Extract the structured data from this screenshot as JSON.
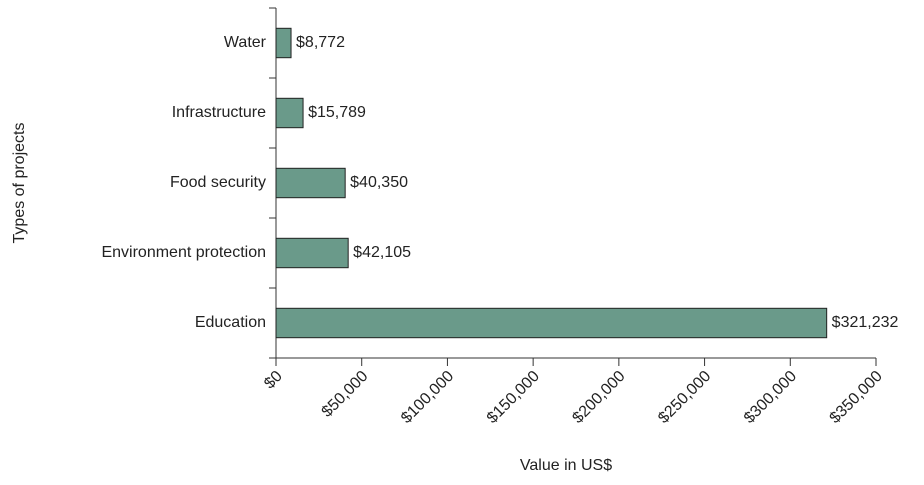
{
  "chart_data": {
    "type": "bar",
    "orientation": "horizontal",
    "categories": [
      "Water",
      "Infrastructure",
      "Food security",
      "Environment protection",
      "Education"
    ],
    "values": [
      8772,
      15789,
      40350,
      42105,
      321232
    ],
    "value_labels": [
      "$8,772",
      "$15,789",
      "$40,350",
      "$42,105",
      "$321,232"
    ],
    "color": "#6a9a8a",
    "xlabel": "Value in US$",
    "ylabel": "Types of projects",
    "xlim": [
      0,
      350000
    ],
    "xticks": [
      {
        "value": 0,
        "label": "$0"
      },
      {
        "value": 50000,
        "label": "$50,000"
      },
      {
        "value": 100000,
        "label": "$100,000"
      },
      {
        "value": 150000,
        "label": "$150,000"
      },
      {
        "value": 200000,
        "label": "$200,000"
      },
      {
        "value": 250000,
        "label": "$250,000"
      },
      {
        "value": 300000,
        "label": "$300,000"
      },
      {
        "value": 350000,
        "label": "$350,000"
      }
    ],
    "grid": false
  }
}
